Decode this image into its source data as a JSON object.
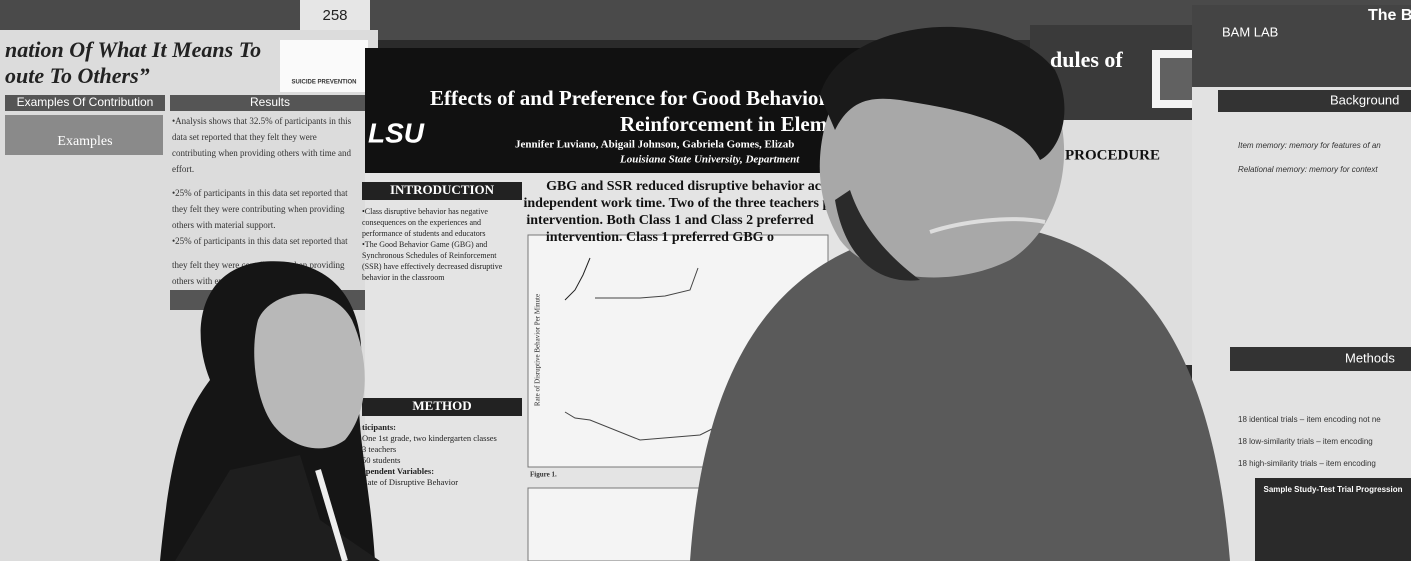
{
  "tag": "258",
  "left_poster": {
    "title_lines": [
      "nation Of What It Means To",
      "oute To Others”"
    ],
    "logo": "SUICIDE PREVENTION",
    "sections": [
      "Examples Of Contribution",
      "Results"
    ],
    "subheading": "Examples",
    "results": [
      "•Analysis shows that 32.5% of participants in this",
      "data set reported that they felt they were",
      "contributing when providing others with time and",
      "effort.",
      "•25% of participants in this data set reported that",
      "they felt they were contributing when providing",
      "others with material support.",
      "•25% of participants in this data set reported that",
      "they felt they were contributing when providing",
      "others with emotional support."
    ]
  },
  "center_poster": {
    "title_lines": [
      "Effects of and Preference for Good Behavior Gam",
      "Reinforcement in Elementar"
    ],
    "authors": "Jennifer Luviano, Abigail Johnson, Gabriela Gomes, Elizab",
    "affiliation": "Louisiana State University, Department",
    "logo": "LSU",
    "sections": [
      "INTRODUCTION",
      "METHOD"
    ],
    "summary": [
      "GBG and SSR reduced disruptive behavior acro",
      "independent work time. Two of the three teachers pr",
      "intervention. Both Class 1 and Class 2 preferred",
      "intervention. Class 1 preferred GBG o"
    ],
    "intro": [
      "•Class disruptive behavior has negative",
      "consequences on the experiences and",
      "performance of students and educators",
      "•The Good Behavior Game (GBG) and",
      "Synchronous Schedules of Reinforcement",
      "(SSR) have effectively decreased disruptive",
      "behavior in the classroom"
    ],
    "method": [
      "ticipants:",
      "One 1st grade, two kindergarten classes",
      "3 teachers",
      "50 students",
      "ependent Variables:",
      "Rate of Disruptive Behavior"
    ],
    "figure": "Figure 1.",
    "y_axis": "Rate of Disruptive Behavior Per Minute"
  },
  "right_poster": {
    "title": "dules of",
    "section": "PROCEDURE"
  },
  "far_poster": {
    "lab": "BAM LAB",
    "title": "The B",
    "sections": [
      "Background",
      "Methods"
    ],
    "bullets": [
      "Item memory: memory for features of an",
      "Relational memory: memory for context",
      "18 identical trials – item encoding not ne",
      "18 low-similarity trials – item encoding",
      "18 high-similarity trials – item encoding"
    ],
    "figure_title": "Sample Study-Test Trial Progression"
  }
}
